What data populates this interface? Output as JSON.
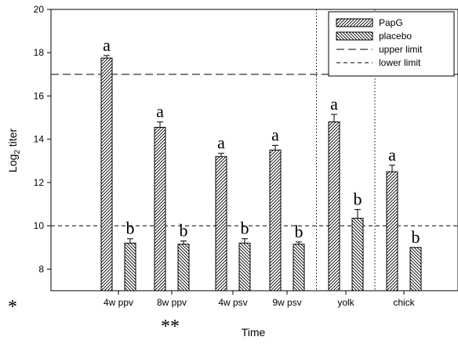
{
  "chart_data": {
    "type": "bar",
    "categories": [
      "4w ppv",
      "8w ppv",
      "4w psv",
      "9w psv",
      "yolk",
      "chick"
    ],
    "series": [
      {
        "name": "PapG",
        "pattern": "hatch-right",
        "values": [
          17.75,
          14.55,
          13.2,
          13.5,
          14.8,
          12.5
        ],
        "errors": [
          0.12,
          0.25,
          0.15,
          0.22,
          0.35,
          0.3
        ],
        "letters": [
          "a",
          "a",
          "a",
          "a",
          "a",
          "a"
        ]
      },
      {
        "name": "placebo",
        "pattern": "hatch-left",
        "values": [
          9.2,
          9.15,
          9.2,
          9.15,
          10.35,
          9.0
        ],
        "errors": [
          0.2,
          0.15,
          0.2,
          0.1,
          0.4,
          0
        ],
        "letters": [
          "b",
          "b",
          "b",
          "b",
          "b",
          "b"
        ]
      }
    ],
    "xlabel": "Time",
    "ylabel": "Log",
    "ylabel_subscript": "2",
    "ylabel_suffix": " titer",
    "ylim": [
      7,
      20
    ],
    "yticks": [
      8,
      10,
      12,
      14,
      16,
      18,
      20
    ],
    "reference_lines": [
      {
        "name": "upper limit",
        "value": 17,
        "style": "long-dash"
      },
      {
        "name": "lower limit",
        "value": 10,
        "style": "short-dash"
      }
    ],
    "separators_after_category": [
      3,
      4
    ],
    "legend_position": "top-right",
    "grid": false,
    "annotations": [
      "*",
      "**"
    ]
  }
}
